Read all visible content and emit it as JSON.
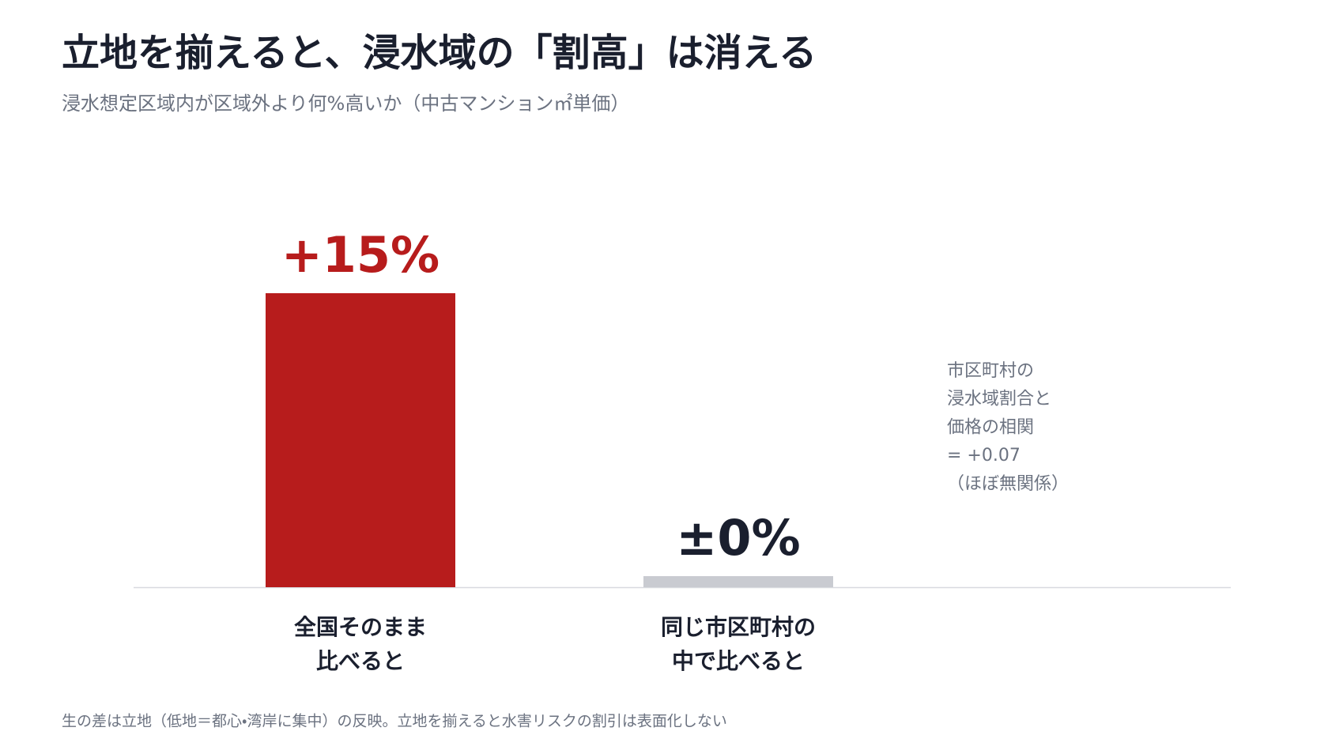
{
  "chart_data": {
    "type": "bar",
    "title": "立地を揃えると、浸水域の「割高」は消える",
    "subtitle": "浸水想定区域内が区域外より何%高いか（中古マンション㎡単価）",
    "categories": [
      [
        "全国そのまま",
        "比べると"
      ],
      [
        "同じ市区町村の",
        "中で比べると"
      ]
    ],
    "values": [
      15,
      0
    ],
    "value_labels": [
      "+15%",
      "±0%"
    ],
    "colors": [
      "#b71c1c",
      "#c9cbd1"
    ],
    "value_label_colors": [
      "#b71c1c",
      "#1a1f2e"
    ],
    "ylim": [
      0,
      15
    ],
    "annotation": [
      "市区町村の",
      "浸水域割合と",
      "価格の相関",
      "= +0.07",
      "（ほぼ無関係）"
    ],
    "footnote": "生の差は立地（低地＝都心・湾岸に集中）の反映。立地を揃えると水害リスクの割引は表面化しない"
  }
}
